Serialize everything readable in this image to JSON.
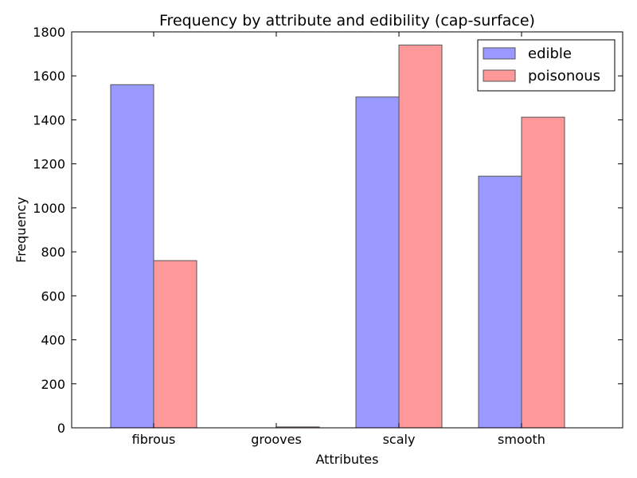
{
  "chart_data": {
    "type": "bar",
    "title": "Frequency by attribute and edibility (cap-surface)",
    "xlabel": "Attributes",
    "ylabel": "Frequency",
    "categories": [
      "fibrous",
      "grooves",
      "scaly",
      "smooth"
    ],
    "series": [
      {
        "name": "edible",
        "values": [
          1560,
          0,
          1504,
          1144
        ],
        "color": "#9999ff"
      },
      {
        "name": "poisonous",
        "values": [
          760,
          4,
          1740,
          1412
        ],
        "color": "#ff9999"
      }
    ],
    "ylim": [
      0,
      1800
    ],
    "yticks": [
      0,
      200,
      400,
      600,
      800,
      1000,
      1200,
      1400,
      1600,
      1800
    ],
    "grid": false,
    "legend_position": "top-right"
  }
}
